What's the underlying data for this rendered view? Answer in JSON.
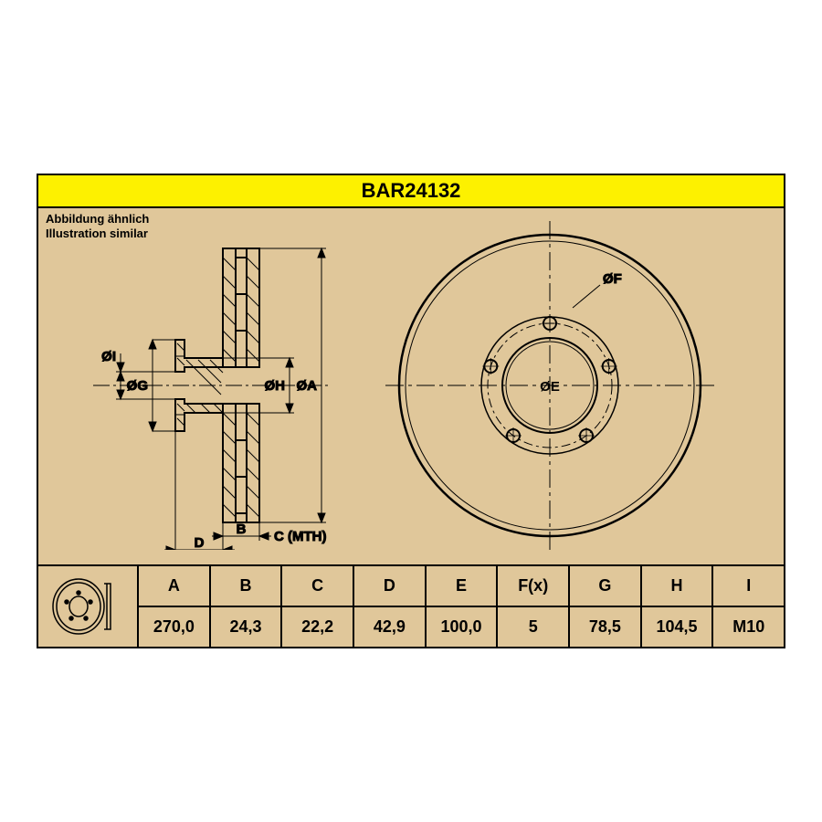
{
  "type": "technical-drawing",
  "part_number": "BAR24132",
  "subtitle_de": "Abbildung ähnlich",
  "subtitle_en": "Illustration similar",
  "colors": {
    "background": "#e0c79a",
    "header": "#fdf100",
    "stroke": "#000000",
    "page": "#ffffff"
  },
  "dimensions": {
    "labels": [
      "A",
      "B",
      "C",
      "D",
      "E",
      "F(x)",
      "G",
      "H",
      "I"
    ],
    "values": [
      "270,0",
      "24,3",
      "22,2",
      "42,9",
      "100,0",
      "5",
      "78,5",
      "104,5",
      "M10"
    ]
  },
  "side_view": {
    "annotations": {
      "I": "ØI",
      "G": "ØG",
      "H": "ØH",
      "A": "ØA",
      "B": "B",
      "D": "D",
      "C": "C (MTH)"
    }
  },
  "front_view": {
    "annotations": {
      "F": "ØF",
      "E": "ØE"
    },
    "bolt_holes": 5,
    "bolt_circle_radius_ratio": 0.42
  },
  "fonts": {
    "title_size": 22,
    "label_size": 15,
    "table_size": 18,
    "subtitle_size": 13
  }
}
